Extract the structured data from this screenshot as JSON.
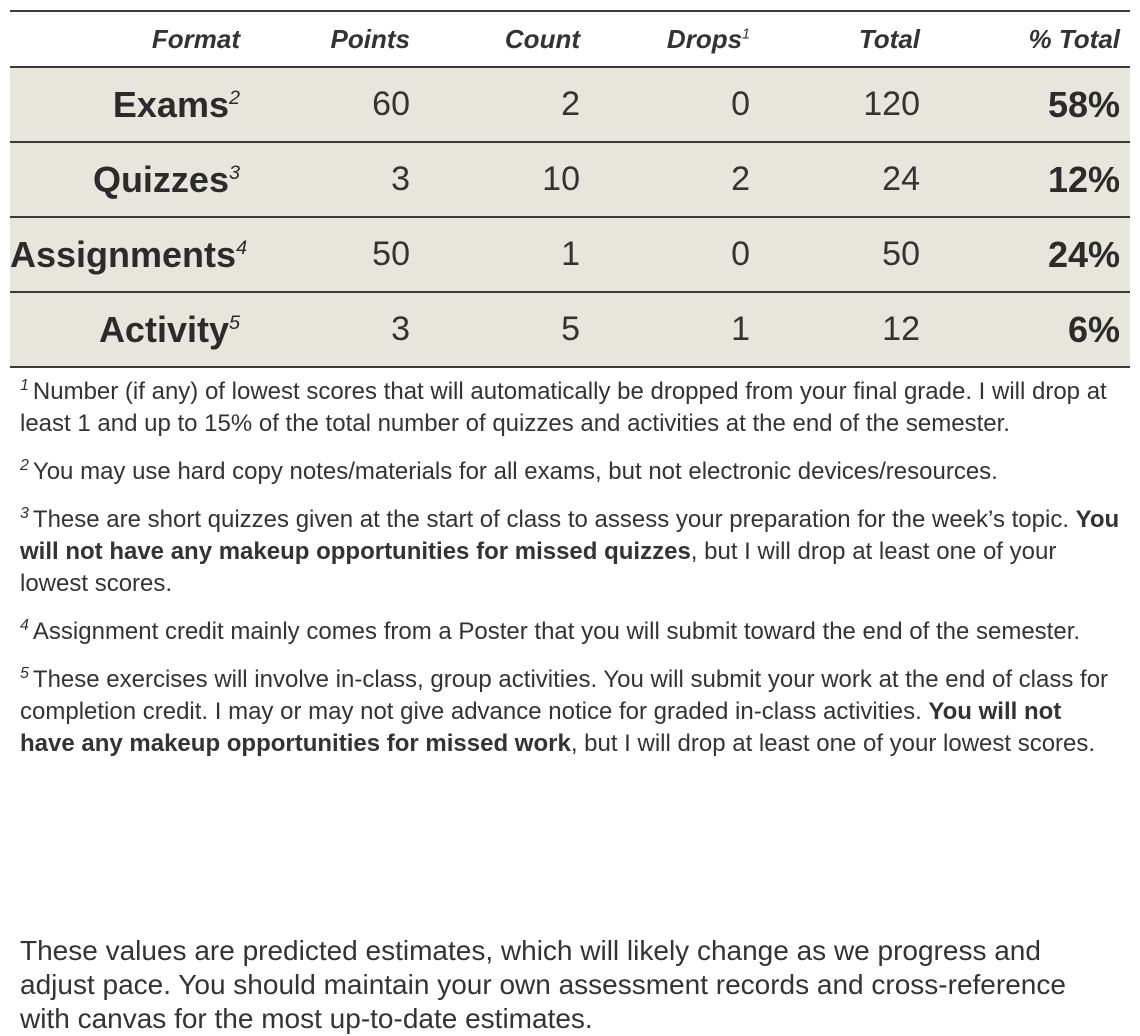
{
  "table": {
    "headers": {
      "format": "Format",
      "points": "Points",
      "count": "Count",
      "drops": "Drops",
      "drops_sup": "1",
      "total": "Total",
      "pct_total": "% Total"
    },
    "rows": [
      {
        "format": "Exams",
        "sup": "2",
        "points": "60",
        "count": "2",
        "drops": "0",
        "total": "120",
        "pct": "58%"
      },
      {
        "format": "Quizzes",
        "sup": "3",
        "points": "3",
        "count": "10",
        "drops": "2",
        "total": "24",
        "pct": "12%"
      },
      {
        "format": "Assignments",
        "sup": "4",
        "points": "50",
        "count": "1",
        "drops": "0",
        "total": "50",
        "pct": "24%"
      },
      {
        "format": "Activity",
        "sup": "5",
        "points": "3",
        "count": "5",
        "drops": "1",
        "total": "12",
        "pct": "6%"
      }
    ]
  },
  "footnotes": [
    {
      "mark": "1",
      "text": "Number (if any) of lowest scores that will automatically be dropped from your final grade. I will drop at least 1 and up to 15% of the total number of quizzes and activities at the end of the semester."
    },
    {
      "mark": "2",
      "text": "You may use hard copy notes/materials for all exams, but not electronic devices/resources."
    },
    {
      "mark": "3",
      "text_before": "These are short quizzes given at the start of class to assess your preparation for the week’s topic. ",
      "bold": "You will not have any makeup opportunities for missed quizzes",
      "text_after": ", but I will drop at least one of your lowest scores."
    },
    {
      "mark": "4",
      "text": "Assignment credit mainly comes from a Poster that you will submit toward the end of the semester."
    },
    {
      "mark": "5",
      "text_before": "These exercises will involve in-class, group activities. You will submit your work at the end of class for completion credit. I may or may not give advance notice for graded in-class activities. ",
      "bold": "You will not have any makeup opportunities for missed work",
      "text_after": ", but I will drop at least one of your lowest scores."
    }
  ],
  "closing": "These values are predicted estimates, which will likely change as we progress and adjust pace. You should maintain your own assessment records and cross-reference with canvas for the most up-to-date estimates."
}
